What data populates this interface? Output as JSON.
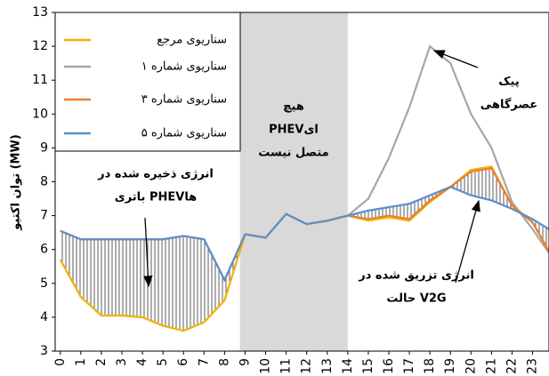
{
  "chart_data": {
    "type": "line",
    "y_label": "توان اکتیو (MW)",
    "x": [
      0,
      1,
      2,
      3,
      4,
      5,
      6,
      7,
      8,
      9,
      10,
      11,
      12,
      13,
      14,
      15,
      16,
      17,
      18,
      19,
      20,
      21,
      22,
      23,
      23.8
    ],
    "xlim": [
      -0.25,
      23.8
    ],
    "xticks": [
      0,
      1,
      2,
      3,
      4,
      5,
      6,
      7,
      8,
      9,
      10,
      11,
      12,
      13,
      14,
      15,
      16,
      17,
      18,
      19,
      20,
      21,
      22,
      23
    ],
    "ylim": [
      3,
      13
    ],
    "yticks": [
      3,
      4,
      5,
      6,
      7,
      8,
      9,
      10,
      11,
      12,
      13
    ],
    "shaded_span": [
      8.75,
      14
    ],
    "series": [
      {
        "name": "سناریوی مرجع",
        "color": "#f5b400",
        "values": [
          5.7,
          4.6,
          4.05,
          4.05,
          4.0,
          3.75,
          3.6,
          3.85,
          4.5,
          6.45,
          6.35,
          7.05,
          6.75,
          6.85,
          7.0,
          6.85,
          6.95,
          6.85,
          7.4,
          7.85,
          8.35,
          8.45,
          7.3,
          6.8,
          5.95
        ]
      },
      {
        "name": "سناریوی شماره ۱",
        "color": "#a6a6a6",
        "values": [
          5.7,
          4.6,
          4.05,
          4.05,
          4.0,
          3.75,
          3.6,
          3.85,
          4.5,
          6.45,
          6.35,
          7.05,
          6.75,
          6.85,
          7.0,
          7.5,
          8.7,
          10.2,
          12.0,
          11.5,
          10.0,
          9.0,
          7.4,
          6.6,
          5.9
        ]
      },
      {
        "name": "سناریوی شماره ۳",
        "color": "#ed7d31",
        "values": [
          6.55,
          6.3,
          6.3,
          6.3,
          6.3,
          6.3,
          6.4,
          6.3,
          5.1,
          6.45,
          6.35,
          7.05,
          6.75,
          6.85,
          7.0,
          6.9,
          7.0,
          6.9,
          7.45,
          7.85,
          8.3,
          8.4,
          7.3,
          6.8,
          5.95
        ]
      },
      {
        "name": "سناریوی شماره ۵",
        "color": "#5b8fc9",
        "values": [
          6.55,
          6.3,
          6.3,
          6.3,
          6.3,
          6.3,
          6.4,
          6.3,
          5.1,
          6.45,
          6.35,
          7.05,
          6.75,
          6.85,
          7.0,
          7.15,
          7.25,
          7.35,
          7.6,
          7.85,
          7.6,
          7.45,
          7.2,
          6.9,
          6.6
        ]
      }
    ],
    "annotations": [
      {
        "lines": [
          "هیچ",
          "PHEVای",
          "متصل نیست"
        ]
      },
      {
        "lines": [
          "پیک",
          "عصرگاهی"
        ]
      },
      {
        "lines": [
          "انرژی ذخیره شده در",
          "باتری PHEVها"
        ]
      },
      {
        "lines": [
          "انرژی تزریق شده در",
          "حالت V2G"
        ]
      }
    ]
  }
}
